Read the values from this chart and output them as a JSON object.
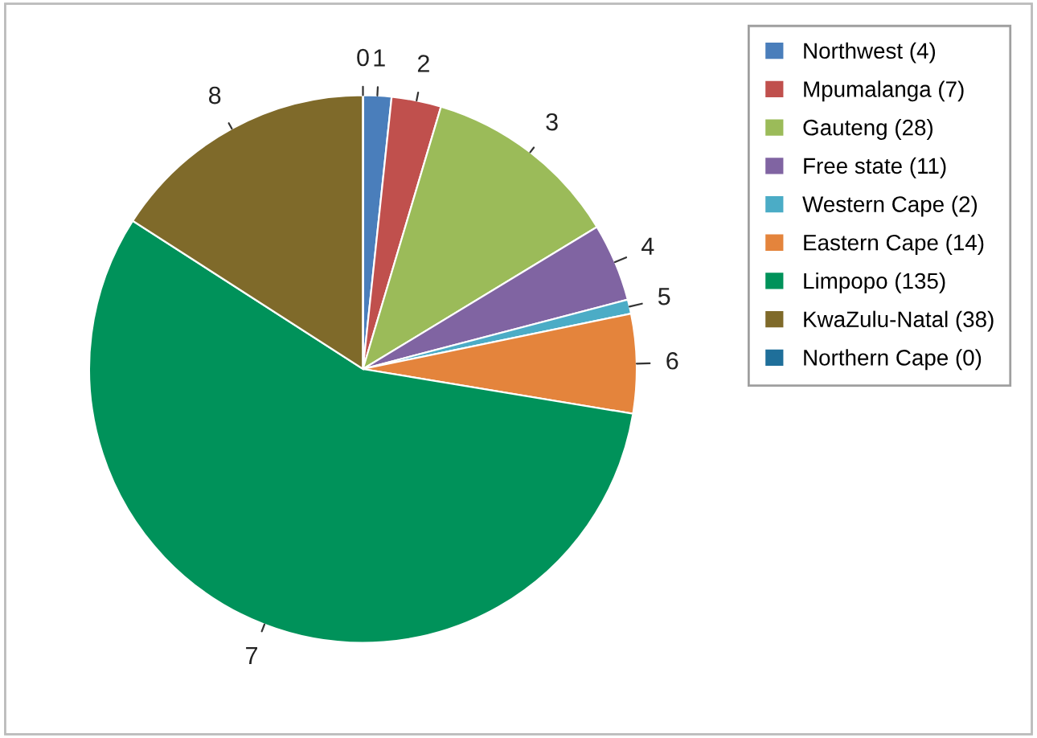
{
  "chart_data": {
    "type": "pie",
    "categories": [
      "Northwest (4)",
      "Mpumalanga (7)",
      "Gauteng (28)",
      "Free state (11)",
      "Western Cape (2)",
      "Eastern Cape (14)",
      "Limpopo (135)",
      "KwaZulu-Natal (38)",
      "Northern Cape (0)"
    ],
    "values": [
      4,
      7,
      28,
      11,
      2,
      14,
      135,
      38,
      0
    ],
    "colors": [
      "#4a7ebb",
      "#c0504d",
      "#9bbb59",
      "#8064a2",
      "#4bacc6",
      "#e4843c",
      "#00925a",
      "#7f6a2a",
      "#1f6f9a"
    ],
    "annotations": [
      {
        "text": "1",
        "x": "Northwest (4)"
      },
      {
        "text": "2",
        "x": "Mpumalanga (7)"
      },
      {
        "text": "3",
        "x": "Gauteng (28)"
      },
      {
        "text": "4",
        "x": "Free state (11)"
      },
      {
        "text": "5",
        "x": "Western Cape (2)"
      },
      {
        "text": "6",
        "x": "Eastern Cape (14)"
      },
      {
        "text": "7",
        "x": "Limpopo (135)"
      },
      {
        "text": "8",
        "x": "KwaZulu-Natal (38)"
      },
      {
        "text": "0",
        "x": "Northern Cape (0)"
      }
    ],
    "legend": "top right"
  }
}
